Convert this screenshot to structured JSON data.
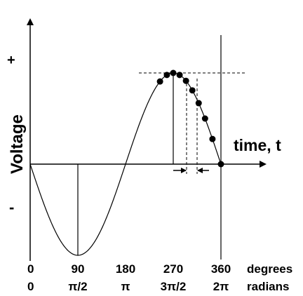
{
  "axis": {
    "y_label": "Voltage",
    "plus": "+",
    "minus": "-",
    "time_label": "time, t"
  },
  "degrees_row": {
    "unit": "degrees",
    "ticks": [
      "0",
      "90",
      "180",
      "270",
      "360"
    ]
  },
  "radians_row": {
    "unit": "radians",
    "ticks": [
      "0",
      "π/2",
      "π",
      "3π/2",
      "2π"
    ]
  },
  "curve": {
    "function": "-sin",
    "period_degrees": 360,
    "sample_points_degrees": [
      245,
      258,
      270,
      282,
      294,
      306,
      318,
      330,
      344,
      360
    ]
  }
}
